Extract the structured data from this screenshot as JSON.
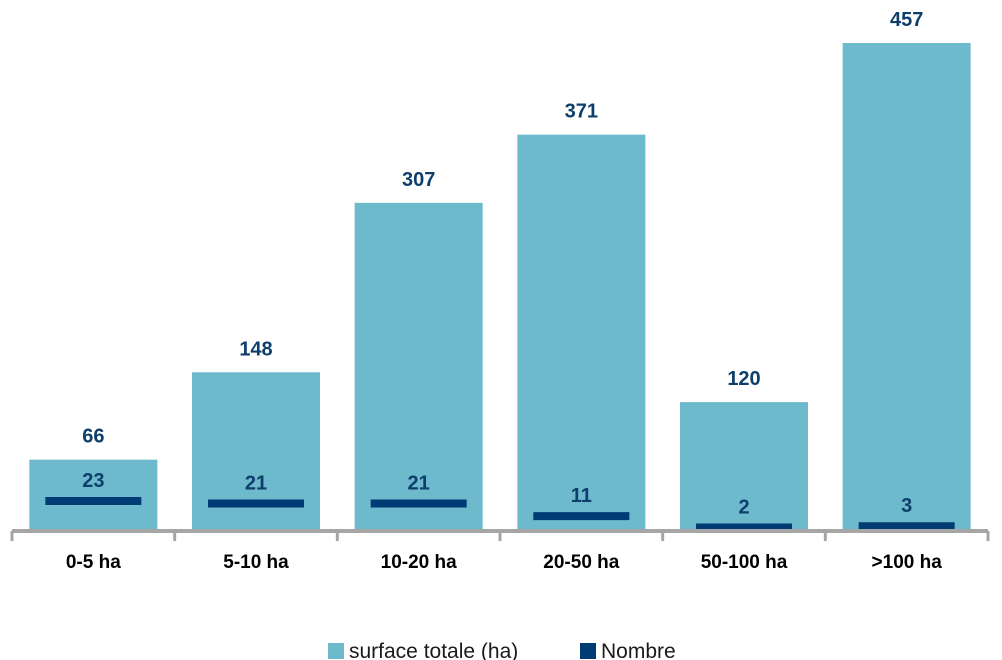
{
  "chart_data": {
    "type": "bar",
    "categories": [
      "0-5 ha",
      "5-10 ha",
      "10-20 ha",
      "20-50 ha",
      "50-100 ha",
      ">100 ha"
    ],
    "series": [
      {
        "name": "surface totale (ha)",
        "values": [
          66,
          148,
          307,
          371,
          120,
          457
        ],
        "color": "#6dbacd"
      },
      {
        "name": "Nombre",
        "values": [
          23,
          21,
          21,
          11,
          2,
          3
        ],
        "color": "#003b73"
      }
    ],
    "ylim": [
      0,
      457
    ],
    "legend": "bottom",
    "grid": false,
    "label_color": "#0e3e6c",
    "axis_color": "#a6a6a6"
  }
}
